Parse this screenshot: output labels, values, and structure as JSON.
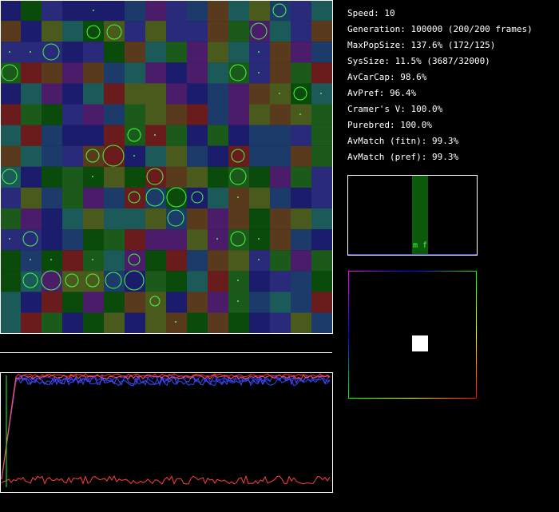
{
  "stats": [
    "Speed: 10",
    "Generation: 100000 (200/200 frames)",
    "MaxPopSize: 137.6% (172/125)",
    "SysSize: 11.5% (3687/32000)",
    "AvCarCap: 98.6%",
    "AvPref: 96.4%",
    "Cramer's V: 100.0%",
    "Purebred: 100.0%",
    "AvMatch (fitn): 99.3%",
    "AvMatch (pref): 99.3%"
  ],
  "histogram_label": "m f"
}
